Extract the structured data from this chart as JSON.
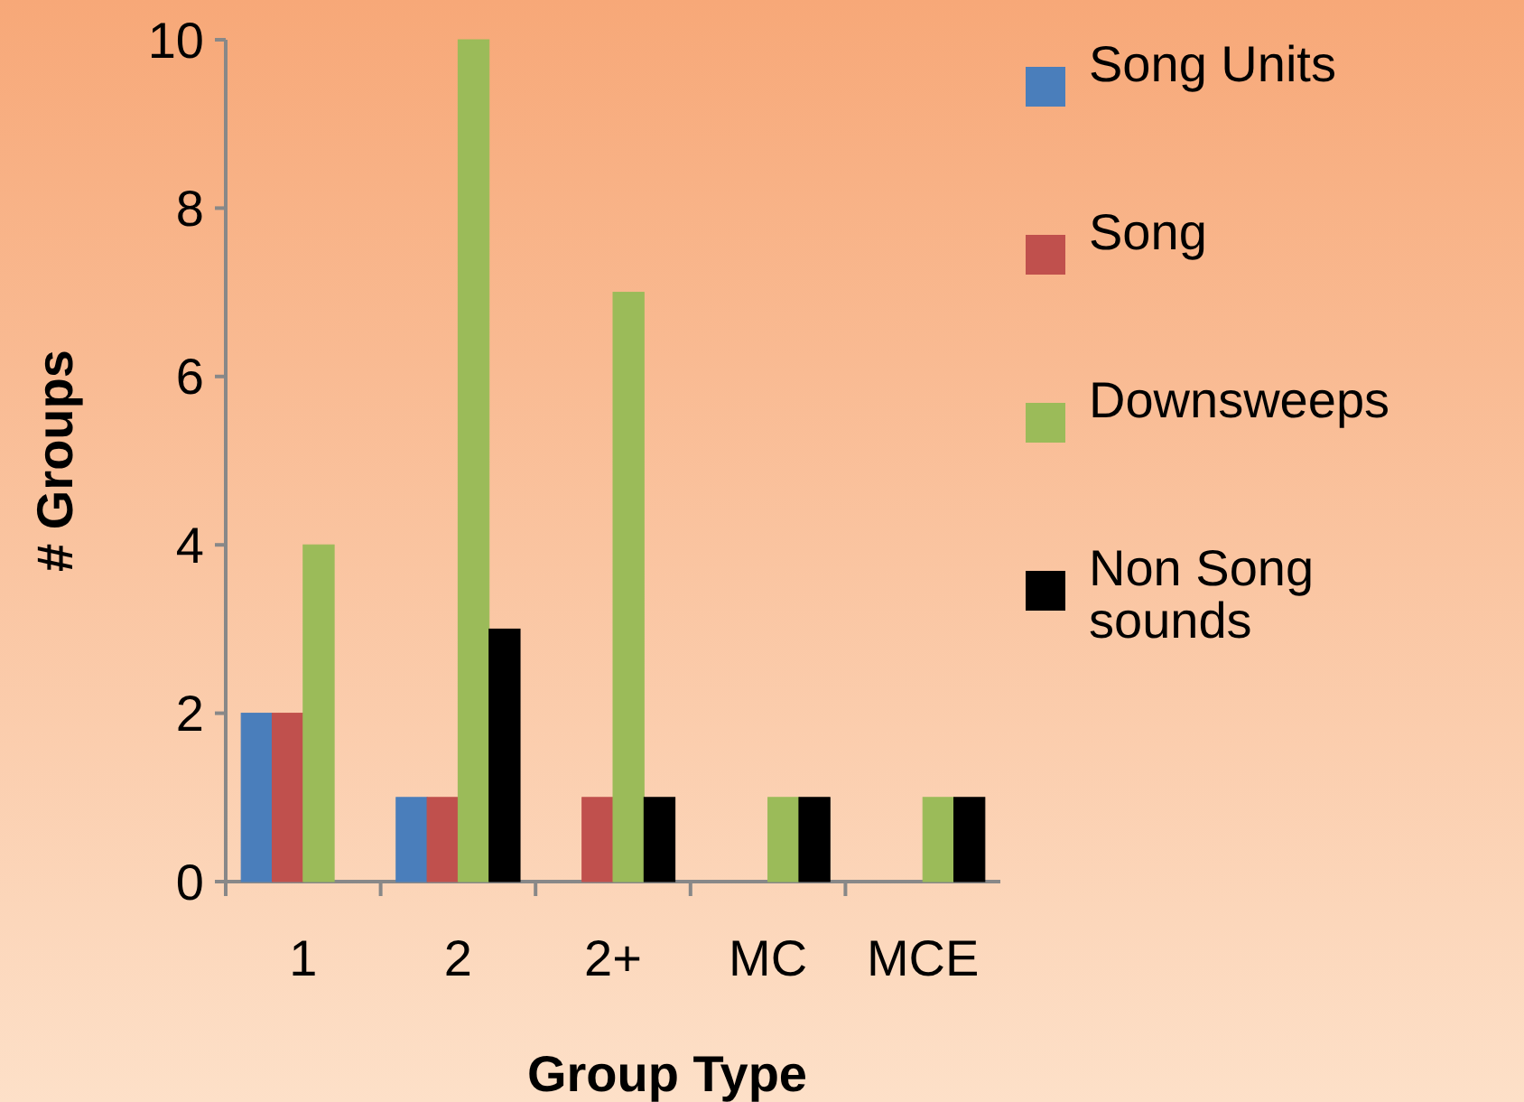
{
  "chart_data": {
    "type": "bar",
    "xlabel": "Group Type",
    "ylabel": "# Groups",
    "categories": [
      "1",
      "2",
      "2+",
      "MC",
      "MCE"
    ],
    "series": [
      {
        "name": "Song Units",
        "color": "#4a7ebb",
        "values": [
          2,
          1,
          0,
          0,
          0
        ]
      },
      {
        "name": "Song",
        "color": "#c0504d",
        "values": [
          2,
          1,
          1,
          0,
          0
        ]
      },
      {
        "name": "Downsweeps",
        "color": "#9bbb59",
        "values": [
          4,
          10,
          7,
          1,
          1
        ]
      },
      {
        "name": "Non Song sounds",
        "color": "#000000",
        "values": [
          0,
          3,
          1,
          1,
          1
        ]
      }
    ],
    "ylim": [
      0,
      10
    ],
    "yticks": [
      0,
      2,
      4,
      6,
      8,
      10
    ],
    "grid": false,
    "legend": "right"
  }
}
